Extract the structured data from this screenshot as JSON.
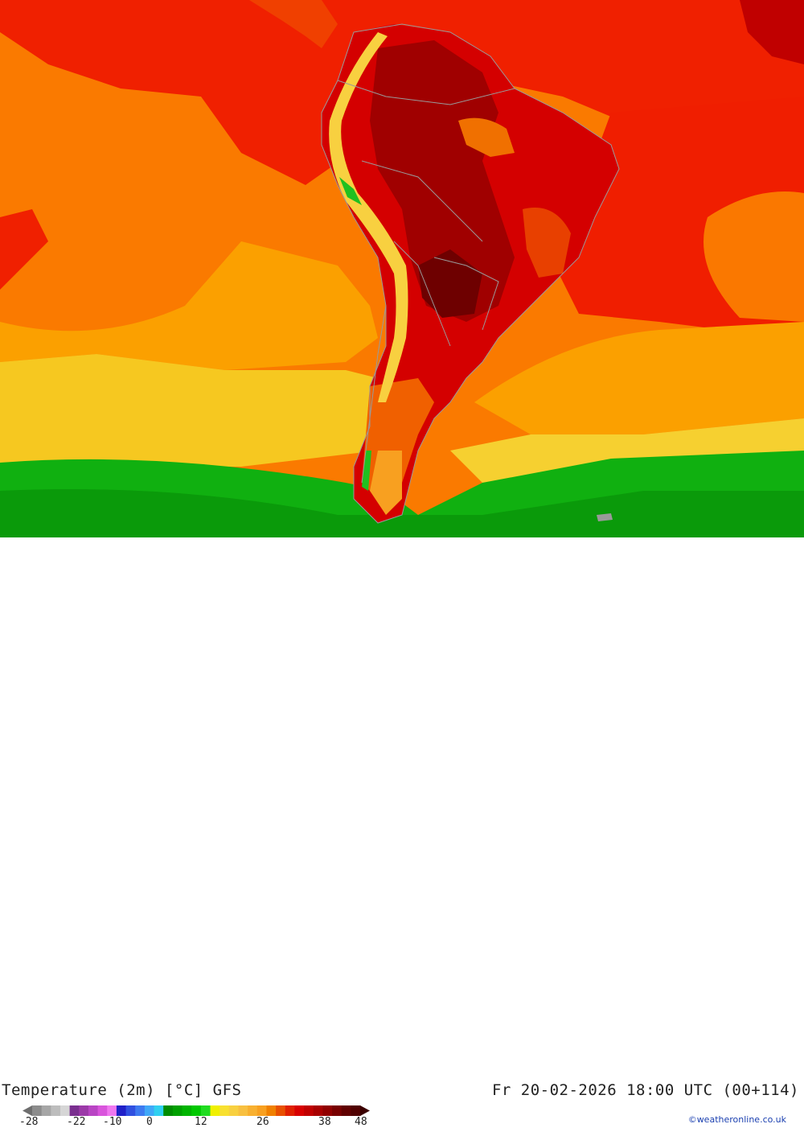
{
  "map": {
    "region": "South America",
    "field": "2 m air temperature"
  },
  "header": {
    "title": "Temperature (2m) [°C] GFS",
    "valid_time": "Fr 20-02-2026 18:00 UTC (00+114)"
  },
  "legend": {
    "tick_labels": [
      "-28",
      "-22",
      "-10",
      "0",
      "12",
      "26",
      "38",
      "48"
    ],
    "colors": [
      "#8c8c8c",
      "#a6a6a6",
      "#bdbdbd",
      "#d6d6d6",
      "#7a2f8f",
      "#9b39a8",
      "#b945c4",
      "#d955dc",
      "#f078f0",
      "#2020c8",
      "#3050e0",
      "#3d7af0",
      "#40a8f8",
      "#30d0f0",
      "#008c00",
      "#00a000",
      "#00b400",
      "#00c800",
      "#20dc20",
      "#f0f000",
      "#f8e030",
      "#f8d040",
      "#f8c040",
      "#f8b030",
      "#f8a020",
      "#f08000",
      "#e85000",
      "#e02000",
      "#d80000",
      "#c00000",
      "#a80000",
      "#900000",
      "#780000",
      "#600000",
      "#500000"
    ],
    "ticks_values": [
      -28,
      -22,
      -10,
      0,
      12,
      26,
      38,
      48
    ]
  },
  "credit": "©weatheronline.co.uk"
}
